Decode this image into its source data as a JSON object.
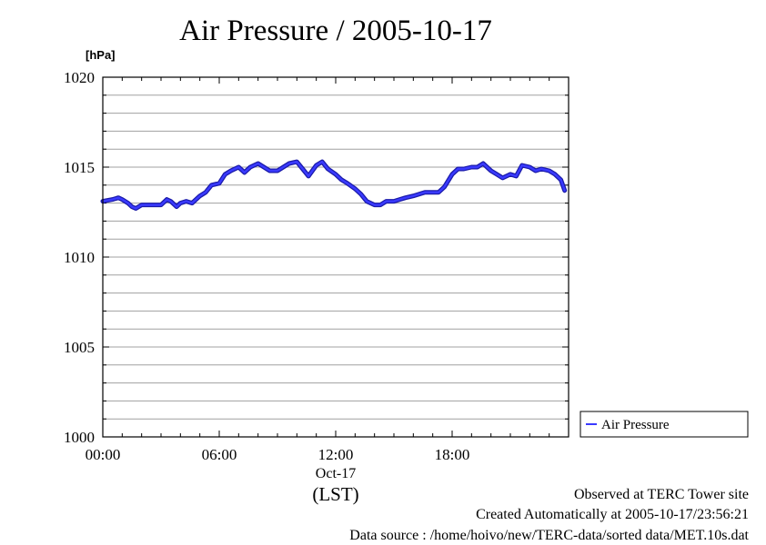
{
  "title": "Air Pressure / 2005-10-17",
  "unit_label": "[hPa]",
  "footer": {
    "observed": "Observed at TERC Tower site",
    "created": "Created Automatically at 2005-10-17/23:56:21",
    "source": "Data source : /home/hoivo/new/TERC-data/sorted  data/MET.10s.dat"
  },
  "colors": {
    "series": "#3a3aff",
    "series_edge": "#1a1aa8",
    "grid": "#a0a0a0",
    "axis": "#000000"
  },
  "chart_data": {
    "type": "line",
    "title": "Air Pressure / 2005-10-17",
    "ylabel": "[hPa]",
    "xlabel": "(LST)",
    "x_unit": "hours",
    "date_label": "Oct-17",
    "xlim": [
      0,
      24
    ],
    "ylim": [
      1000,
      1020
    ],
    "yticks": [
      1000,
      1005,
      1010,
      1015,
      1020
    ],
    "ytick_labels": [
      "1000",
      "1005",
      "1010",
      "1015",
      "1020"
    ],
    "xticks": [
      0,
      6,
      12,
      18
    ],
    "xtick_labels": [
      "00:00",
      "06:00",
      "12:00",
      "18:00"
    ],
    "grid": true,
    "legend_position": "right",
    "series": [
      {
        "name": "Air Pressure",
        "x": [
          0.0,
          0.5,
          0.8,
          1.0,
          1.3,
          1.5,
          1.7,
          2.0,
          2.5,
          3.0,
          3.3,
          3.5,
          3.8,
          4.0,
          4.3,
          4.6,
          5.0,
          5.3,
          5.6,
          6.0,
          6.3,
          6.6,
          7.0,
          7.3,
          7.6,
          8.0,
          8.3,
          8.6,
          9.0,
          9.3,
          9.6,
          10.0,
          10.3,
          10.6,
          11.0,
          11.3,
          11.6,
          12.0,
          12.3,
          12.6,
          13.0,
          13.3,
          13.6,
          14.0,
          14.3,
          14.6,
          15.0,
          15.3,
          15.6,
          16.0,
          16.3,
          16.6,
          17.0,
          17.3,
          17.6,
          18.0,
          18.3,
          18.6,
          19.0,
          19.3,
          19.6,
          20.0,
          20.3,
          20.6,
          21.0,
          21.3,
          21.6,
          22.0,
          22.3,
          22.6,
          23.0,
          23.3,
          23.6,
          23.8
        ],
        "values": [
          1013.1,
          1013.2,
          1013.3,
          1013.2,
          1013.0,
          1012.8,
          1012.7,
          1012.9,
          1012.9,
          1012.9,
          1013.2,
          1013.1,
          1012.8,
          1013.0,
          1013.1,
          1013.0,
          1013.4,
          1013.6,
          1014.0,
          1014.1,
          1014.6,
          1014.8,
          1015.0,
          1014.7,
          1015.0,
          1015.2,
          1015.0,
          1014.8,
          1014.8,
          1015.0,
          1015.2,
          1015.3,
          1014.9,
          1014.5,
          1015.1,
          1015.3,
          1014.9,
          1014.6,
          1014.3,
          1014.1,
          1013.8,
          1013.5,
          1013.1,
          1012.9,
          1012.9,
          1013.1,
          1013.1,
          1013.2,
          1013.3,
          1013.4,
          1013.5,
          1013.6,
          1013.6,
          1013.6,
          1013.9,
          1014.6,
          1014.9,
          1014.9,
          1015.0,
          1015.0,
          1015.2,
          1014.8,
          1014.6,
          1014.4,
          1014.6,
          1014.5,
          1015.1,
          1015.0,
          1014.8,
          1014.9,
          1014.8,
          1014.6,
          1014.3,
          1013.7
        ]
      }
    ]
  }
}
